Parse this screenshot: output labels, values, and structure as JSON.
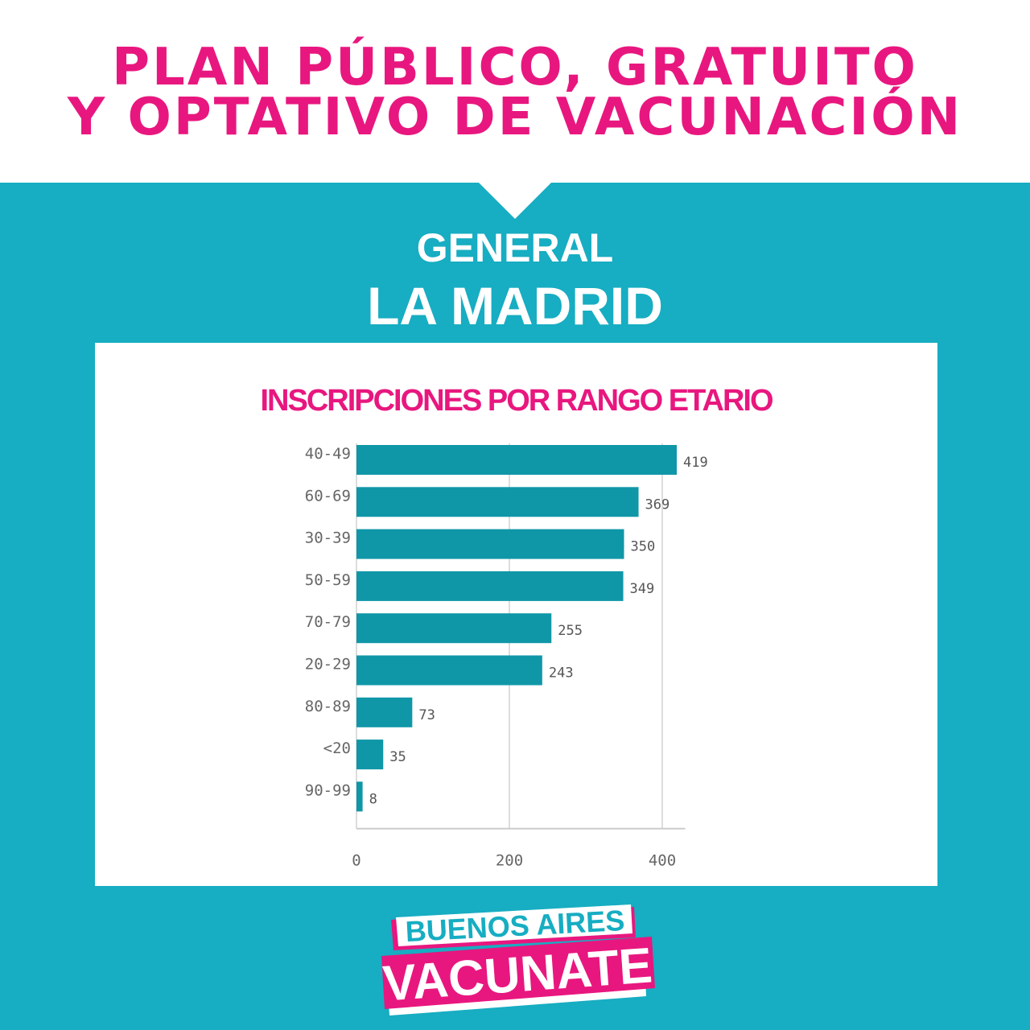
{
  "header": {
    "line1": "PLAN PÚBLICO, GRATUITO",
    "line2": "Y OPTATIVO DE VACUNACIÓN"
  },
  "place": {
    "line1": "GENERAL",
    "line2": "LA MADRID"
  },
  "chart_data": {
    "type": "bar",
    "orientation": "horizontal",
    "title": "INSCRIPCIONES POR RANGO ETARIO",
    "categories": [
      "40-49",
      "60-69",
      "30-39",
      "50-59",
      "70-79",
      "20-29",
      "80-89",
      "<20",
      "90-99"
    ],
    "values": [
      419,
      369,
      350,
      349,
      255,
      243,
      73,
      35,
      8
    ],
    "xlim": [
      0,
      430
    ],
    "xticks": [
      0,
      200,
      400
    ],
    "xtick_labels": [
      "0",
      "200",
      "400"
    ],
    "grid": true,
    "bar_color": "#0f97a8"
  },
  "logo": {
    "line1": "BUENOS AIRES",
    "line2": "VACUNATE"
  },
  "colors": {
    "background": "#17adc2",
    "accent": "#e8177f",
    "bar": "#0f97a8"
  }
}
